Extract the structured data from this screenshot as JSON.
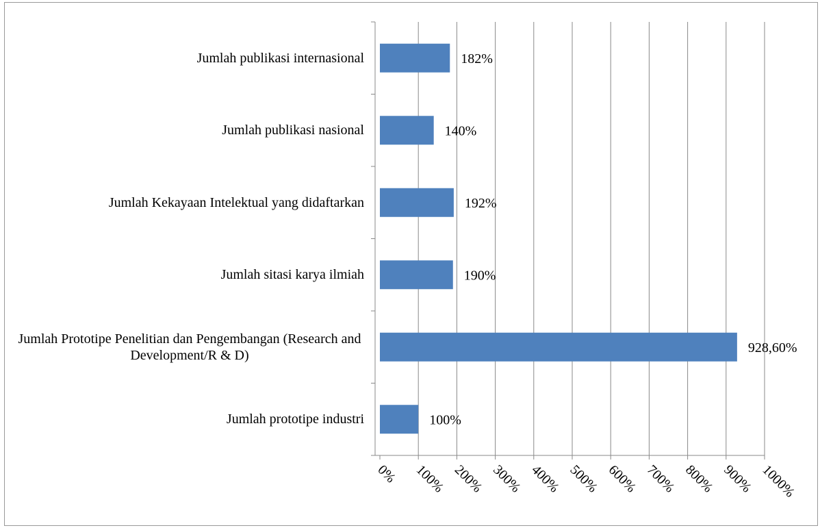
{
  "chart_data": {
    "type": "barh",
    "categories": [
      "Jumlah publikasi internasional",
      "Jumlah publikasi nasional",
      "Jumlah Kekayaan Intelektual yang didaftarkan",
      "Jumlah sitasi karya ilmiah",
      "Jumlah Prototipe Penelitian dan Pengembangan (Research and Development/R & D)",
      "Jumlah prototipe industri"
    ],
    "values": [
      182,
      140,
      192,
      190,
      928.6,
      100
    ],
    "value_labels": [
      "182%",
      "140%",
      "192%",
      "190%",
      "928,60%",
      "100%"
    ],
    "color": "#4f81bd",
    "xlim": [
      0,
      1000
    ],
    "xticks": [
      {
        "value": 0,
        "label": "0%"
      },
      {
        "value": 100,
        "label": "100%"
      },
      {
        "value": 200,
        "label": "200%"
      },
      {
        "value": 300,
        "label": "300%"
      },
      {
        "value": 400,
        "label": "400%"
      },
      {
        "value": 500,
        "label": "500%"
      },
      {
        "value": 600,
        "label": "600%"
      },
      {
        "value": 700,
        "label": "700%"
      },
      {
        "value": 800,
        "label": "800%"
      },
      {
        "value": 900,
        "label": "900%"
      },
      {
        "value": 1000,
        "label": "1000%"
      }
    ],
    "grid": true
  }
}
